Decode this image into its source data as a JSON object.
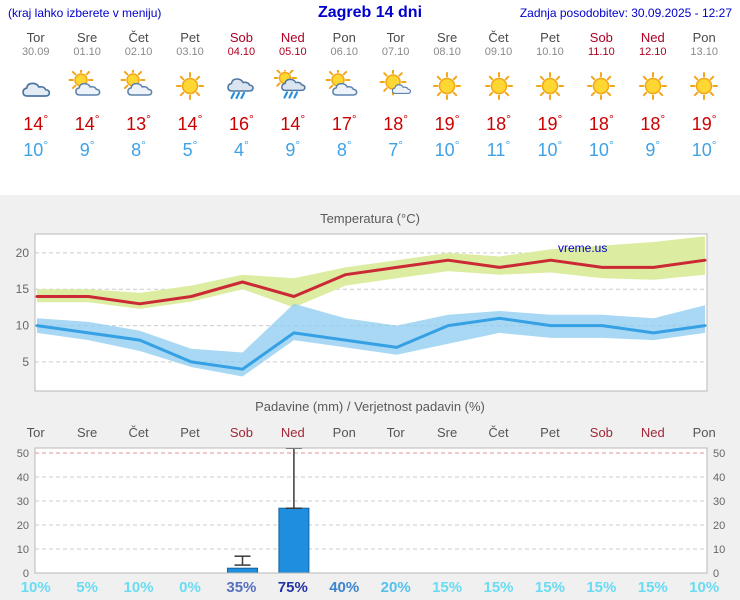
{
  "header": {
    "left_note": "(kraj lahko izberete v meniju)",
    "title": "Zagreb 14 dni",
    "updated": "Zadnja posodobitev: 30.09.2025 - 12:27"
  },
  "units": {
    "degree": "°"
  },
  "colors": {
    "link_blue": "#0000cc",
    "tmax_red": "#cc0000",
    "tmin_blue": "#3fa2e6",
    "weekend_red": "#b00023",
    "panel_bg": "#f0f0f0"
  },
  "days": [
    {
      "name": "Tor",
      "date": "30.09",
      "weekend": false,
      "icon": "cloudy",
      "tmax": "14",
      "tmin": "10"
    },
    {
      "name": "Sre",
      "date": "01.10",
      "weekend": false,
      "icon": "partly",
      "tmax": "14",
      "tmin": "9"
    },
    {
      "name": "Čet",
      "date": "02.10",
      "weekend": false,
      "icon": "partly",
      "tmax": "13",
      "tmin": "8"
    },
    {
      "name": "Pet",
      "date": "03.10",
      "weekend": false,
      "icon": "sunny",
      "tmax": "14",
      "tmin": "5"
    },
    {
      "name": "Sob",
      "date": "04.10",
      "weekend": true,
      "icon": "rain",
      "tmax": "16",
      "tmin": "4"
    },
    {
      "name": "Ned",
      "date": "05.10",
      "weekend": true,
      "icon": "rain-sun",
      "tmax": "14",
      "tmin": "9"
    },
    {
      "name": "Pon",
      "date": "06.10",
      "weekend": false,
      "icon": "partly",
      "tmax": "17",
      "tmin": "8"
    },
    {
      "name": "Tor",
      "date": "07.10",
      "weekend": false,
      "icon": "mostly-sunny",
      "tmax": "18",
      "tmin": "7"
    },
    {
      "name": "Sre",
      "date": "08.10",
      "weekend": false,
      "icon": "sunny",
      "tmax": "19",
      "tmin": "10"
    },
    {
      "name": "Čet",
      "date": "09.10",
      "weekend": false,
      "icon": "sunny",
      "tmax": "18",
      "tmin": "11"
    },
    {
      "name": "Pet",
      "date": "10.10",
      "weekend": false,
      "icon": "sunny",
      "tmax": "19",
      "tmin": "10"
    },
    {
      "name": "Sob",
      "date": "11.10",
      "weekend": true,
      "icon": "sunny",
      "tmax": "18",
      "tmin": "10"
    },
    {
      "name": "Ned",
      "date": "12.10",
      "weekend": true,
      "icon": "sunny",
      "tmax": "18",
      "tmin": "9"
    },
    {
      "name": "Pon",
      "date": "13.10",
      "weekend": false,
      "icon": "sunny",
      "tmax": "19",
      "tmin": "10"
    }
  ],
  "chart_data": [
    {
      "type": "line",
      "title": "Temperatura (°C)",
      "watermark": "vreme.us",
      "x_labels": [
        "Tor",
        "Sre",
        "Čet",
        "Pet",
        "Sob",
        "Ned",
        "Pon",
        "Tor",
        "Sre",
        "Čet",
        "Pet",
        "Sob",
        "Ned",
        "Pon"
      ],
      "y_ticks": [
        5,
        10,
        15,
        20
      ],
      "ylim": [
        1,
        22.6
      ],
      "grid": true,
      "series": [
        {
          "name": "max-temperature",
          "line_color": "#cc2936",
          "band_color": "#dcecA0",
          "values": [
            14,
            14,
            13,
            14,
            16,
            14,
            17,
            18,
            19,
            18,
            19,
            18,
            18,
            19
          ],
          "band_upper": [
            15,
            15,
            14.5,
            15.5,
            17,
            16.5,
            18,
            19,
            20,
            19.5,
            20.5,
            21,
            21.5,
            22.3
          ],
          "band_lower": [
            13.2,
            13.2,
            12.3,
            13.3,
            15,
            12.5,
            15.5,
            16.5,
            17.5,
            17,
            17.3,
            16.5,
            16.3,
            17
          ]
        },
        {
          "name": "min-temperature",
          "line_color": "#35a1e4",
          "band_color": "#8fcdf0",
          "values": [
            10,
            9,
            8,
            5,
            4,
            9,
            8,
            7,
            10,
            11,
            10,
            10,
            9,
            10
          ],
          "band_upper": [
            11,
            10.5,
            9.3,
            6.8,
            6.3,
            13,
            11,
            10,
            11.5,
            12,
            11.5,
            11.5,
            11,
            12.8
          ],
          "band_lower": [
            9,
            8,
            6.5,
            4.3,
            3,
            8,
            7,
            6,
            7.5,
            9,
            8.3,
            8.3,
            8,
            9
          ]
        }
      ]
    },
    {
      "type": "bar",
      "title": "Padavine (mm) / Verjetnost padavin (%)",
      "x_labels": [
        {
          "label": "Tor",
          "weekend": false
        },
        {
          "label": "Sre",
          "weekend": false
        },
        {
          "label": "Čet",
          "weekend": false
        },
        {
          "label": "Pet",
          "weekend": false
        },
        {
          "label": "Sob",
          "weekend": true
        },
        {
          "label": "Ned",
          "weekend": true
        },
        {
          "label": "Pon",
          "weekend": false
        },
        {
          "label": "Tor",
          "weekend": false
        },
        {
          "label": "Sre",
          "weekend": false
        },
        {
          "label": "Čet",
          "weekend": false
        },
        {
          "label": "Pet",
          "weekend": false
        },
        {
          "label": "Sob",
          "weekend": true
        },
        {
          "label": "Ned",
          "weekend": true
        },
        {
          "label": "Pon",
          "weekend": false
        }
      ],
      "y_ticks": [
        0,
        10,
        20,
        30,
        40,
        50
      ],
      "ylim": [
        0,
        52
      ],
      "bar_color": "#1f8ede",
      "bar_border": "#13639f",
      "values": [
        0,
        0,
        0,
        0,
        2,
        27,
        0,
        0,
        0,
        0,
        0,
        0,
        0,
        0
      ],
      "whisker_low": [
        0,
        0,
        0,
        0,
        3.3,
        27,
        0,
        0,
        0,
        0,
        0,
        0,
        0,
        0
      ],
      "whisker_high": [
        0,
        0,
        0,
        0,
        7,
        52,
        0,
        0,
        0,
        0,
        0,
        0,
        0,
        0
      ],
      "probabilities": [
        {
          "label": "10%",
          "color": "#68dcf2",
          "bold": false
        },
        {
          "label": "5%",
          "color": "#68dcf2",
          "bold": false
        },
        {
          "label": "10%",
          "color": "#68dcf2",
          "bold": false
        },
        {
          "label": "0%",
          "color": "#68dcf2",
          "bold": false
        },
        {
          "label": "35%",
          "color": "#5570bd",
          "bold": false
        },
        {
          "label": "75%",
          "color": "#2433a6",
          "bold": true
        },
        {
          "label": "40%",
          "color": "#3d85cd",
          "bold": false
        },
        {
          "label": "20%",
          "color": "#54c2ea",
          "bold": false
        },
        {
          "label": "15%",
          "color": "#68dcf2",
          "bold": false
        },
        {
          "label": "15%",
          "color": "#68dcf2",
          "bold": false
        },
        {
          "label": "15%",
          "color": "#68dcf2",
          "bold": false
        },
        {
          "label": "15%",
          "color": "#68dcf2",
          "bold": false
        },
        {
          "label": "15%",
          "color": "#68dcf2",
          "bold": false
        },
        {
          "label": "10%",
          "color": "#68dcf2",
          "bold": false
        }
      ]
    }
  ]
}
